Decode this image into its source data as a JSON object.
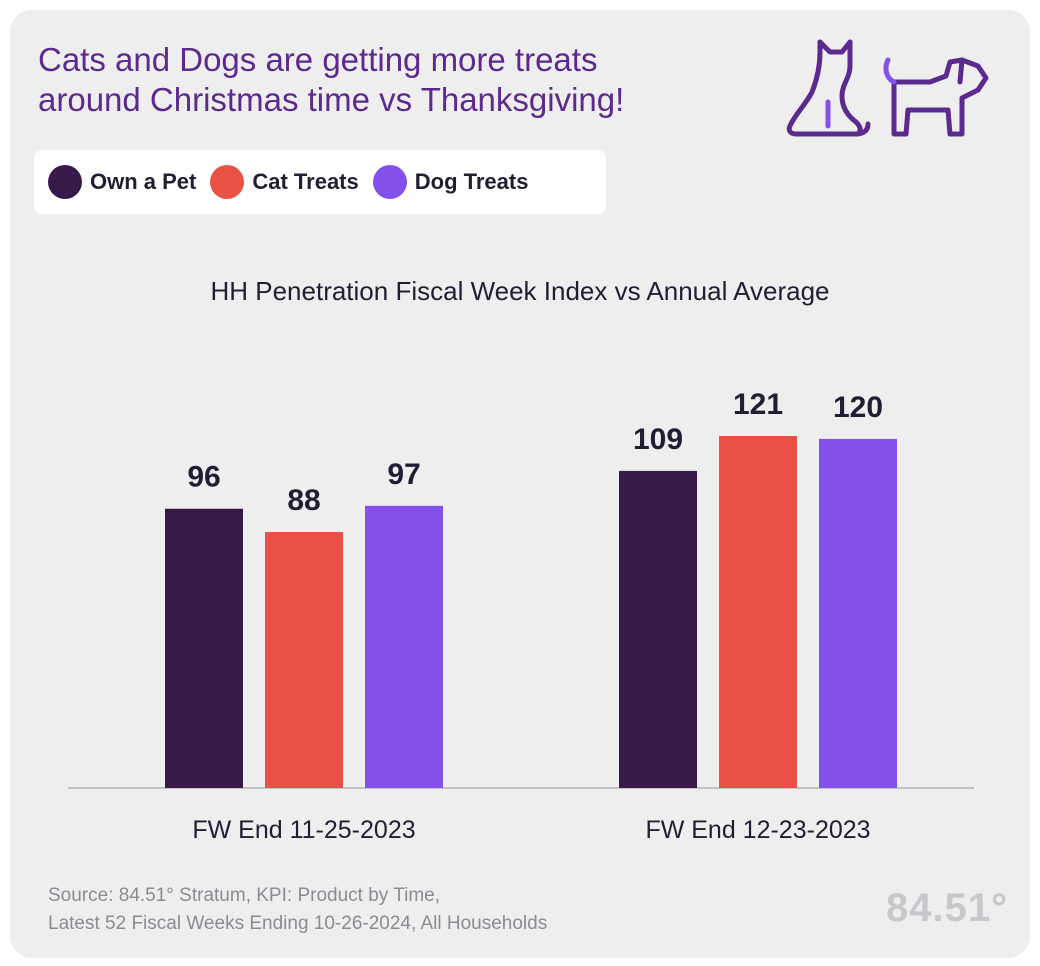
{
  "headline": {
    "line1": "Cats and Dogs are getting more treats",
    "line2": "around Christmas time vs Thanksgiving!"
  },
  "icons": [
    "cat-icon",
    "dog-icon"
  ],
  "footer": {
    "source_line1": "Source: 84.51° Stratum, KPI: Product by Time,",
    "source_line2": "Latest 52 Fiscal Weeks Ending 10-26-2024, All Households",
    "brand": "84.51°"
  },
  "chart_data": {
    "type": "bar",
    "title": "HH Penetration Fiscal Week Index vs Annual Average",
    "categories": [
      "FW End 11-25-2023",
      "FW End 12-23-2023"
    ],
    "series": [
      {
        "name": "Own a Pet",
        "values": [
          96,
          109
        ],
        "color": "#381a4a"
      },
      {
        "name": "Cat Treats",
        "values": [
          88,
          121
        ],
        "color": "#e85244"
      },
      {
        "name": "Dog Treats",
        "values": [
          97,
          120
        ],
        "color": "#8450ea"
      }
    ],
    "ylim": [
      0,
      121
    ],
    "grid": false,
    "legend": "top-left",
    "data_labels": true
  }
}
